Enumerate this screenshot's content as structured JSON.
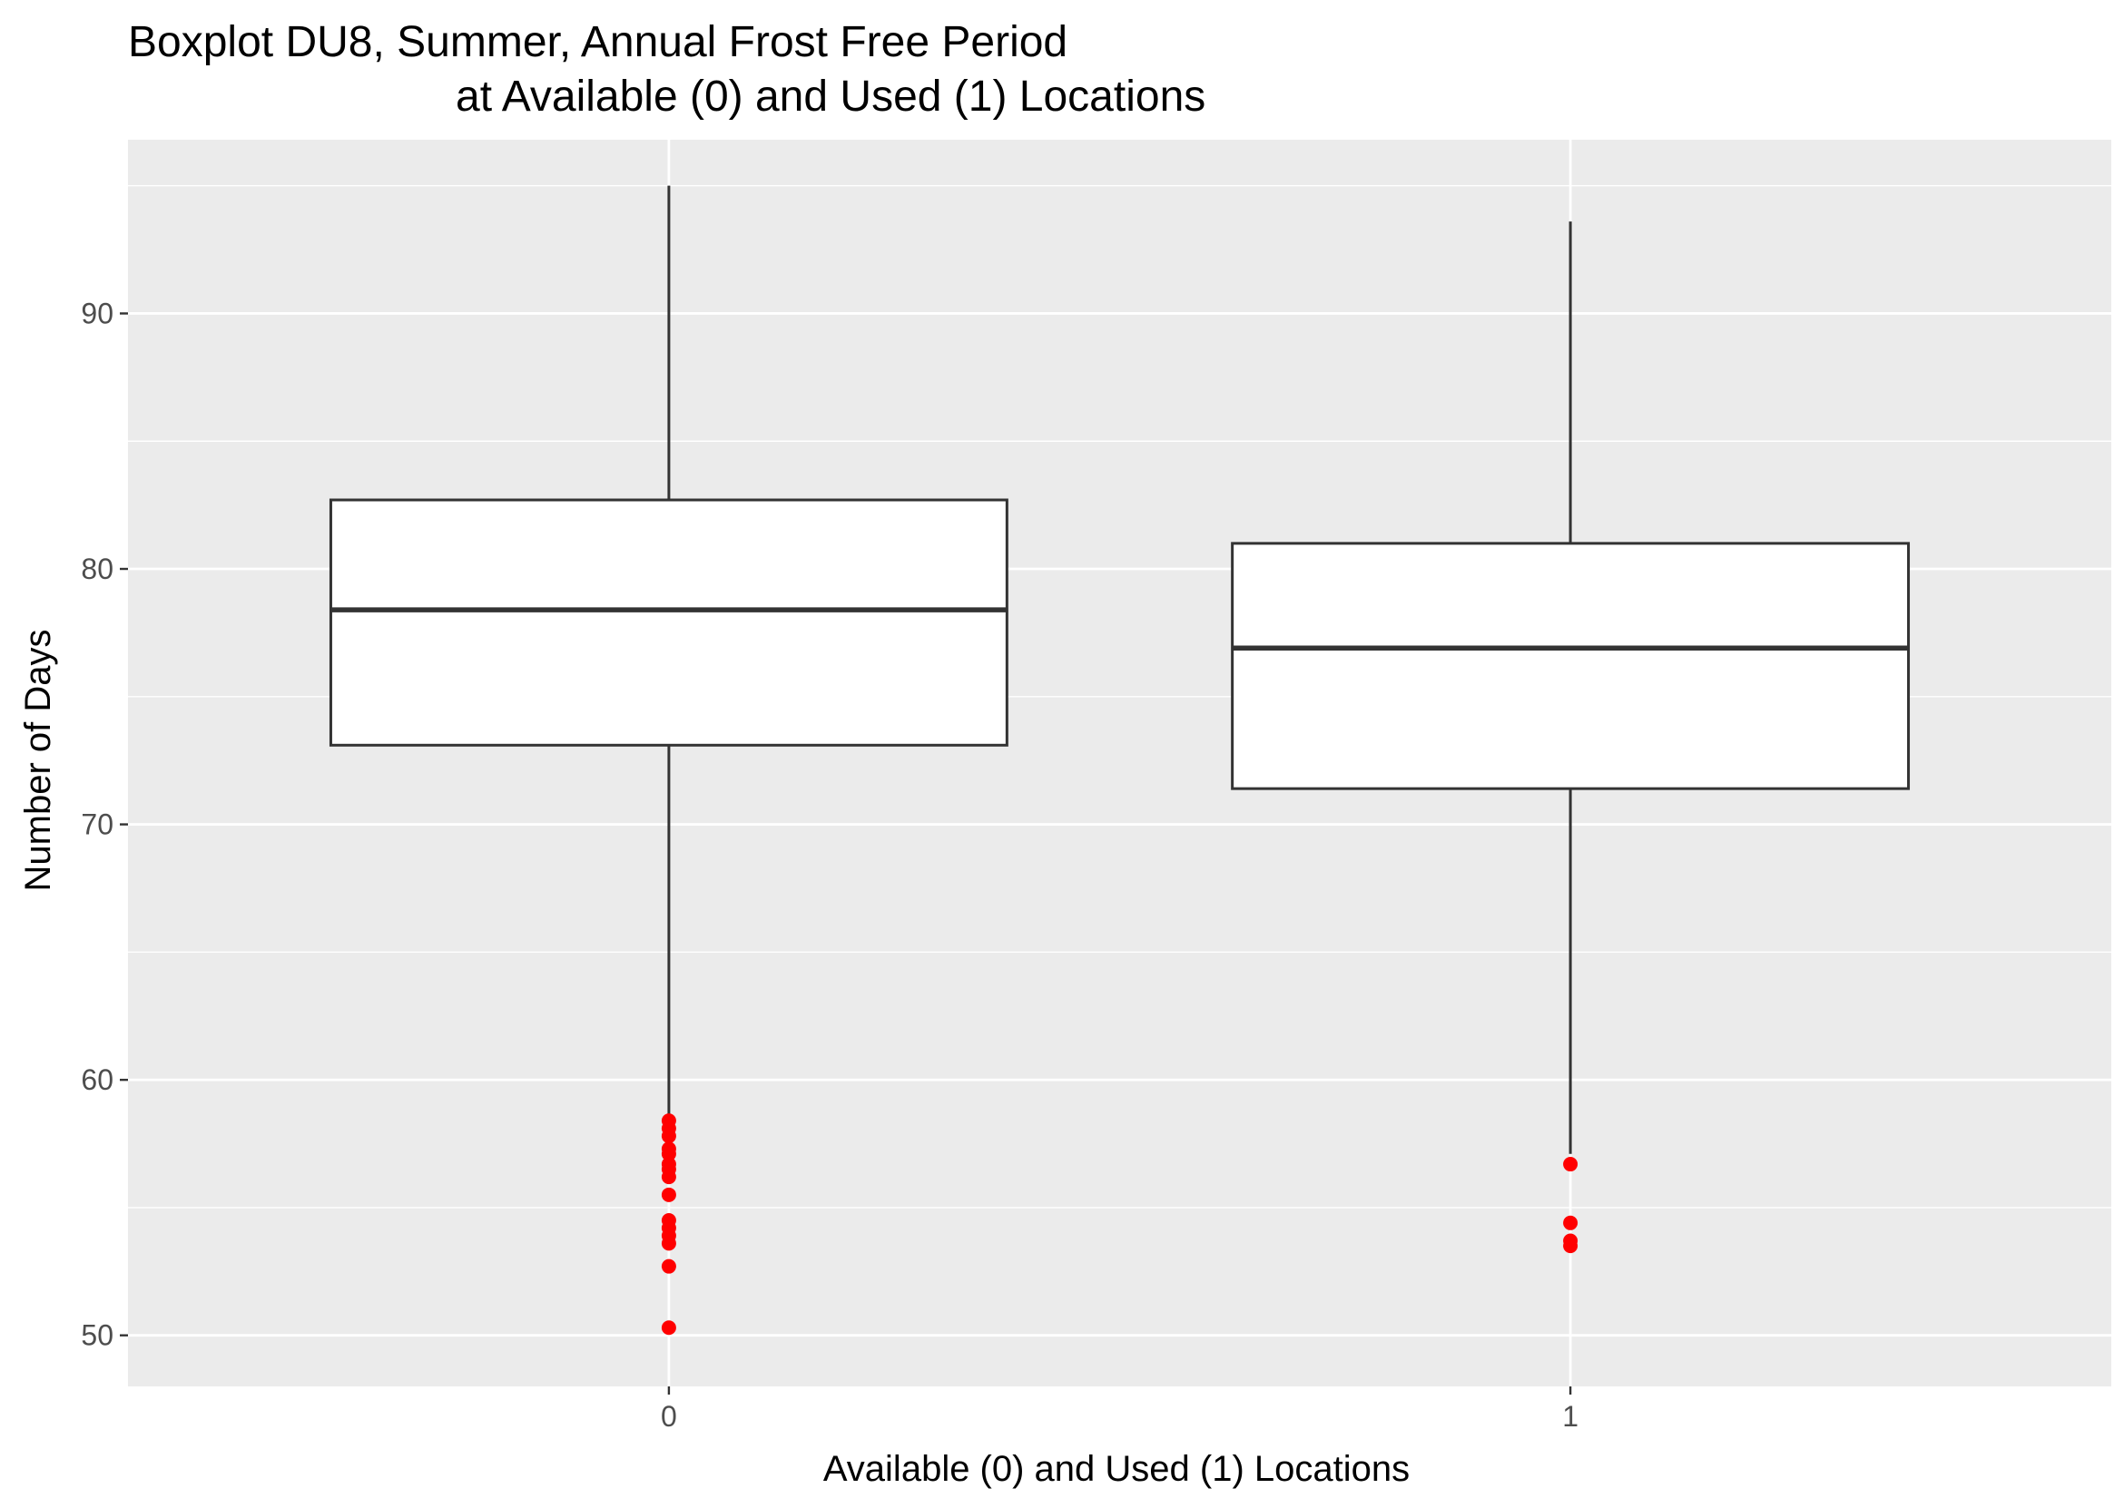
{
  "chart_data": {
    "type": "boxplot",
    "title_line1": "Boxplot DU8, Summer, Annual Frost Free Period",
    "title_line2": "at Available (0) and Used (1) Locations",
    "xlabel": "Available (0) and Used (1) Locations",
    "ylabel": "Number of Days",
    "categories": [
      "0",
      "1"
    ],
    "ylim": [
      48,
      96.8
    ],
    "yticks": [
      50,
      60,
      70,
      80,
      90
    ],
    "grid": true,
    "background_color": "#ebebeb",
    "grid_color": "#ffffff",
    "box_fill": "#ffffff",
    "line_color": "#333333",
    "outlier_color": "#ff0000",
    "boxes": [
      {
        "category": "0",
        "whisker_low": 58.6,
        "q1": 73.1,
        "median": 78.4,
        "q3": 82.7,
        "whisker_high": 95.0,
        "outliers": [
          58.4,
          58.1,
          57.8,
          57.3,
          57.1,
          56.7,
          56.5,
          56.2,
          55.5,
          54.5,
          54.2,
          53.9,
          53.6,
          52.7,
          50.3
        ]
      },
      {
        "category": "1",
        "whisker_low": 57.1,
        "q1": 71.4,
        "median": 76.9,
        "q3": 81.0,
        "whisker_high": 93.6,
        "outliers": [
          56.7,
          54.4,
          53.7,
          53.5
        ]
      }
    ]
  }
}
